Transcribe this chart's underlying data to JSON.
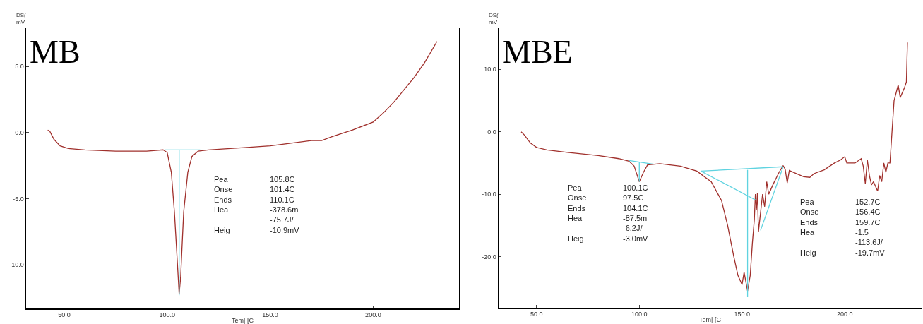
{
  "chart_data": [
    {
      "type": "line",
      "title": "MB",
      "xlabel": "Tem| [C",
      "ylabel": "DS(\nmV",
      "xlim": [
        31.5,
        241.7
      ],
      "ylim": [
        -13.3,
        7.9
      ],
      "xticks": [
        {
          "value": 50,
          "label": "50.0"
        },
        {
          "value": 100,
          "label": "100.0"
        },
        {
          "value": 150,
          "label": "150.0"
        },
        {
          "value": 200,
          "label": "200.0"
        }
      ],
      "yticks": [
        {
          "value": -10,
          "label": "-10.0"
        },
        {
          "value": -5,
          "label": "-5.0"
        },
        {
          "value": 0,
          "label": "0.0"
        },
        {
          "value": 5,
          "label": "5.0"
        }
      ],
      "series": [
        {
          "color": "#a0302c",
          "x": [
            42,
            43,
            45,
            48,
            52,
            60,
            75,
            90,
            98,
            100,
            102,
            103.5,
            105,
            105.8,
            106.5,
            108,
            110,
            112,
            115,
            120,
            140,
            150,
            160,
            170,
            175,
            180,
            190,
            200,
            205,
            210,
            220,
            225,
            231
          ],
          "values": [
            0.2,
            0.1,
            -0.5,
            -1.0,
            -1.2,
            -1.3,
            -1.4,
            -1.4,
            -1.3,
            -1.5,
            -3,
            -6,
            -10,
            -12.2,
            -11,
            -6,
            -3,
            -1.8,
            -1.4,
            -1.3,
            -1.1,
            -1.0,
            -0.8,
            -0.6,
            -0.6,
            -0.3,
            0.2,
            0.8,
            1.5,
            2.3,
            4.2,
            5.3,
            6.9
          ]
        },
        {
          "color": "#5fd3e0",
          "x": [
            99,
            116
          ],
          "values": [
            -1.3,
            -1.3
          ]
        },
        {
          "color": "#5fd3e0",
          "x": [
            105.8,
            105.8
          ],
          "values": [
            -1.3,
            -12.3
          ]
        }
      ],
      "annotations": [
        "Pea\nOnse\nEnds\nHea\n\nHeig",
        "105.8C\n101.4C\n110.1C\n-378.6m\n-75.7J/\n-10.9mV"
      ]
    },
    {
      "type": "line",
      "title": "MBE",
      "xlabel": "Tem| [C",
      "ylabel": "DS(\nmV",
      "xlim": [
        31.5,
        237.4
      ],
      "ylim": [
        -28.2,
        16.6
      ],
      "xticks": [
        {
          "value": 50,
          "label": "50.0"
        },
        {
          "value": 100,
          "label": "100.0"
        },
        {
          "value": 150,
          "label": "150.0"
        },
        {
          "value": 200,
          "label": "200.0"
        }
      ],
      "yticks": [
        {
          "value": -20,
          "label": "-20.0"
        },
        {
          "value": -10,
          "label": "-10.0"
        },
        {
          "value": 0,
          "label": "0.0"
        },
        {
          "value": 10,
          "label": "10.0"
        }
      ],
      "series": [
        {
          "color": "#a0302c",
          "x": [
            42.5,
            44,
            47,
            50,
            55,
            65,
            80,
            90,
            95,
            97.5,
            100,
            102,
            104,
            110,
            120,
            128,
            135,
            140,
            143,
            146,
            148,
            150,
            151,
            152.7,
            154,
            155,
            156,
            156.5,
            157,
            157.5,
            158,
            159,
            160,
            161,
            162,
            163,
            165,
            168,
            170,
            171,
            172,
            173,
            175,
            180,
            183,
            185,
            190,
            195,
            198,
            200,
            201,
            205,
            208,
            209,
            210,
            211,
            212,
            213,
            214,
            216,
            217,
            218,
            219,
            220,
            221,
            222,
            224,
            226,
            227,
            229,
            230,
            230.5
          ],
          "values": [
            0,
            -0.5,
            -1.8,
            -2.5,
            -2.9,
            -3.3,
            -3.8,
            -4.3,
            -4.7,
            -5.5,
            -8,
            -6.5,
            -5.3,
            -5.1,
            -5.5,
            -6.3,
            -8,
            -11,
            -15,
            -20,
            -23,
            -24.5,
            -22.5,
            -25.5,
            -23,
            -18,
            -14,
            -10,
            -12.5,
            -9.8,
            -16,
            -13,
            -10,
            -12,
            -8,
            -10,
            -8.5,
            -6.5,
            -5.4,
            -6,
            -8.2,
            -6.2,
            -6.5,
            -7.2,
            -7.3,
            -6.7,
            -6.1,
            -5.0,
            -4.5,
            -4.0,
            -5.0,
            -5.0,
            -4.3,
            -5.5,
            -8.3,
            -4.5,
            -7,
            -8.5,
            -8,
            -9.5,
            -7,
            -8,
            -5,
            -6.5,
            -5,
            -5,
            5,
            7.5,
            5.5,
            7,
            8,
            14.3
          ]
        },
        {
          "color": "#5fd3e0",
          "x": [
            95,
            107
          ],
          "values": [
            -4.6,
            -5.2
          ]
        },
        {
          "color": "#5fd3e0",
          "x": [
            100,
            100
          ],
          "values": [
            -4.8,
            -8
          ]
        },
        {
          "color": "#5fd3e0",
          "x": [
            130,
            170
          ],
          "values": [
            -6.3,
            -5.6
          ]
        },
        {
          "color": "#5fd3e0",
          "x": [
            152.7,
            152.7
          ],
          "values": [
            -6.1,
            -26.5
          ]
        },
        {
          "color": "#5fd3e0",
          "x": [
            130,
            157
          ],
          "values": [
            -6.3,
            -11
          ]
        },
        {
          "color": "#5fd3e0",
          "x": [
            159,
            170
          ],
          "values": [
            -15.8,
            -5.6
          ]
        }
      ],
      "annotations": [
        "Pea\nOnse\nEnds\nHea\n\nHeig",
        "100.1C\n97.5C\n104.1C\n-87.5m\n-6.2J/\n-3.0mV",
        "Pea\nOnse\nEnds\nHea\n\nHeig",
        "152.7C\n156.4C\n159.7C\n-1.5\n-113.6J/\n-19.7mV"
      ]
    }
  ]
}
